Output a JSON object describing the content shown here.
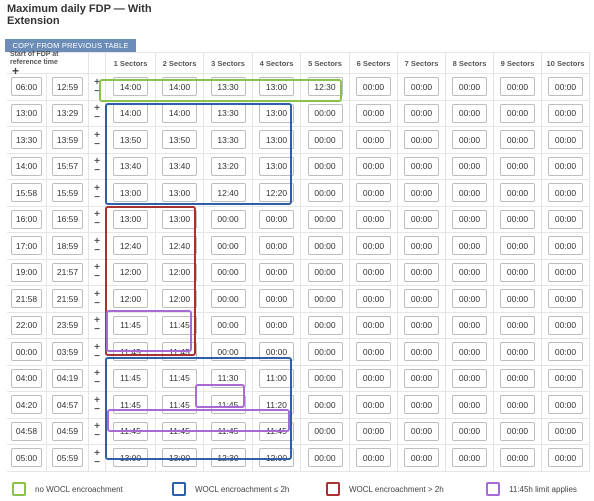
{
  "title": "Maximum daily FDP — With Extension",
  "copy_button": "COPY FROM PREVIOUS TABLE",
  "header": {
    "start_label": "Start of FDP at reference time",
    "plus": "+",
    "sectors": [
      "1 Sectors",
      "2 Sectors",
      "3 Sectors",
      "4 Sectors",
      "5 Sectors",
      "6 Sectors",
      "7 Sectors",
      "8 Sectors",
      "9 Sectors",
      "10 Sectors"
    ]
  },
  "row_controls": {
    "plus": "+",
    "minus": "−"
  },
  "rows": [
    {
      "from": "06:00",
      "to": "12:59",
      "values": [
        "14:00",
        "14:00",
        "13:30",
        "13:00",
        "12:30",
        "00:00",
        "00:00",
        "00:00",
        "00:00",
        "00:00"
      ]
    },
    {
      "from": "13:00",
      "to": "13:29",
      "values": [
        "14:00",
        "14:00",
        "13:30",
        "13:00",
        "00:00",
        "00:00",
        "00:00",
        "00:00",
        "00:00",
        "00:00"
      ]
    },
    {
      "from": "13:30",
      "to": "13:59",
      "values": [
        "13:50",
        "13:50",
        "13:30",
        "13:00",
        "00:00",
        "00:00",
        "00:00",
        "00:00",
        "00:00",
        "00:00"
      ]
    },
    {
      "from": "14:00",
      "to": "15:57",
      "values": [
        "13:40",
        "13:40",
        "13:20",
        "13:00",
        "00:00",
        "00:00",
        "00:00",
        "00:00",
        "00:00",
        "00:00"
      ]
    },
    {
      "from": "15:58",
      "to": "15:59",
      "values": [
        "13:00",
        "13:00",
        "12:40",
        "12:20",
        "00:00",
        "00:00",
        "00:00",
        "00:00",
        "00:00",
        "00:00"
      ]
    },
    {
      "from": "16:00",
      "to": "16:59",
      "values": [
        "13:00",
        "13:00",
        "00:00",
        "00:00",
        "00:00",
        "00:00",
        "00:00",
        "00:00",
        "00:00",
        "00:00"
      ]
    },
    {
      "from": "17:00",
      "to": "18:59",
      "values": [
        "12:40",
        "12:40",
        "00:00",
        "00:00",
        "00:00",
        "00:00",
        "00:00",
        "00:00",
        "00:00",
        "00:00"
      ]
    },
    {
      "from": "19:00",
      "to": "21:57",
      "values": [
        "12:00",
        "12:00",
        "00:00",
        "00:00",
        "00:00",
        "00:00",
        "00:00",
        "00:00",
        "00:00",
        "00:00"
      ]
    },
    {
      "from": "21:58",
      "to": "21:59",
      "values": [
        "12:00",
        "12:00",
        "00:00",
        "00:00",
        "00:00",
        "00:00",
        "00:00",
        "00:00",
        "00:00",
        "00:00"
      ]
    },
    {
      "from": "22:00",
      "to": "23:59",
      "values": [
        "11:45",
        "11:45",
        "00:00",
        "00:00",
        "00:00",
        "00:00",
        "00:00",
        "00:00",
        "00:00",
        "00:00"
      ]
    },
    {
      "from": "00:00",
      "to": "03:59",
      "values": [
        "11:45",
        "11:45",
        "00:00",
        "00:00",
        "00:00",
        "00:00",
        "00:00",
        "00:00",
        "00:00",
        "00:00"
      ]
    },
    {
      "from": "04:00",
      "to": "04:19",
      "values": [
        "11:45",
        "11:45",
        "11:30",
        "11:00",
        "00:00",
        "00:00",
        "00:00",
        "00:00",
        "00:00",
        "00:00"
      ]
    },
    {
      "from": "04:20",
      "to": "04:57",
      "values": [
        "11:45",
        "11:45",
        "11:45",
        "11:20",
        "00:00",
        "00:00",
        "00:00",
        "00:00",
        "00:00",
        "00:00"
      ]
    },
    {
      "from": "04:58",
      "to": "04:59",
      "values": [
        "11:45",
        "11:45",
        "11:45",
        "11:45",
        "00:00",
        "00:00",
        "00:00",
        "00:00",
        "00:00",
        "00:00"
      ]
    },
    {
      "from": "05:00",
      "to": "05:59",
      "values": [
        "13:00",
        "13:00",
        "12:30",
        "12:00",
        "00:00",
        "00:00",
        "00:00",
        "00:00",
        "00:00",
        "00:00"
      ]
    }
  ],
  "colors": {
    "green": "#8bc34a",
    "blue": "#2e5fa8",
    "red": "#a83232",
    "purple": "#a66bd6"
  },
  "legend": [
    {
      "label": "no WOCL encroachment",
      "color": "#8bc34a"
    },
    {
      "label": "WOCL encroachment ≤ 2h",
      "color": "#2e5fa8"
    },
    {
      "label": "WOCL encroachment > 2h",
      "color": "#a83232"
    },
    {
      "label": "11:45h limit applies",
      "color": "#a66bd6"
    }
  ]
}
